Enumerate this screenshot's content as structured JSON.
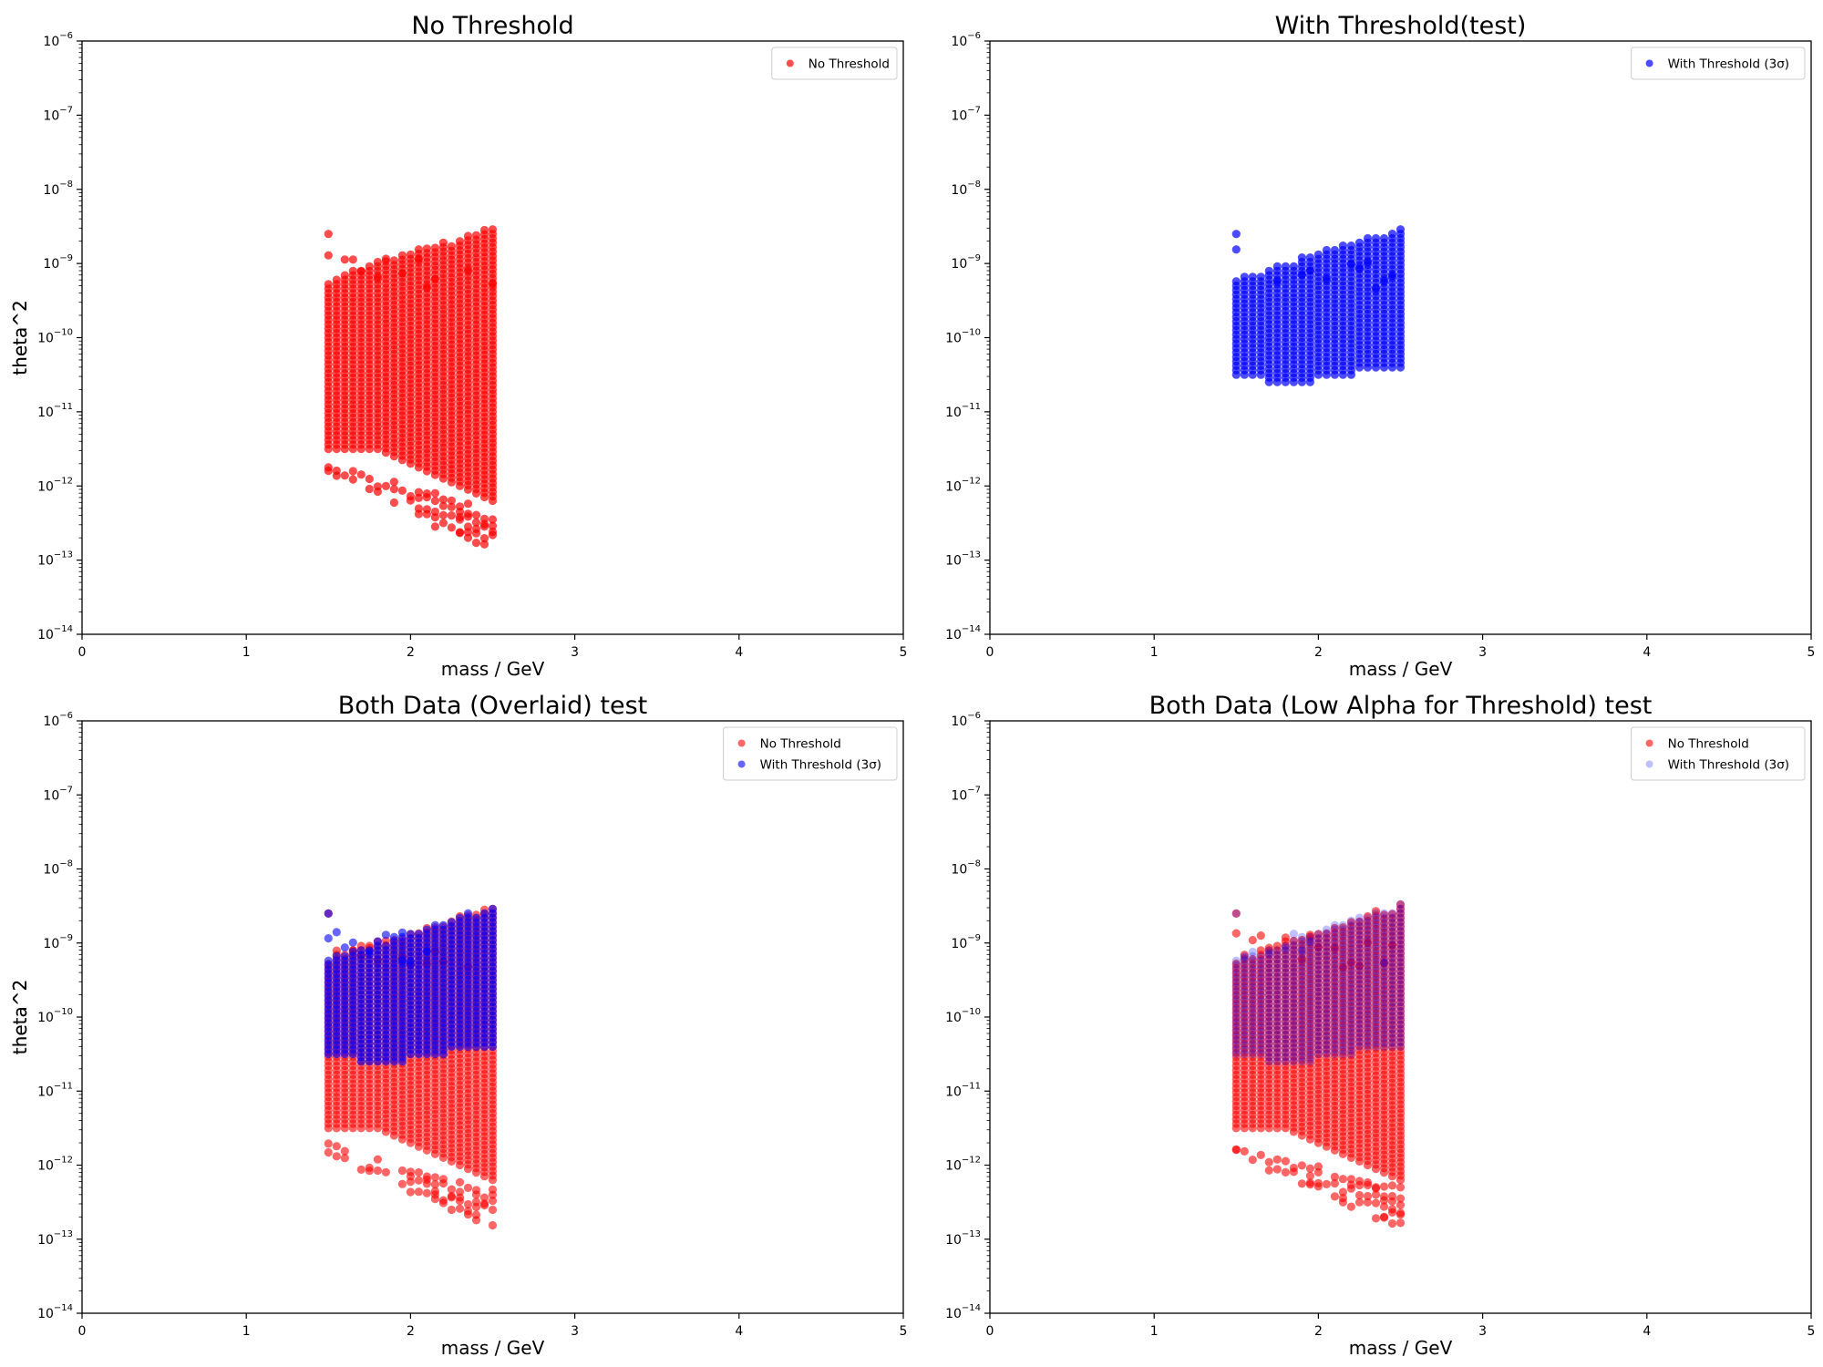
{
  "figure": {
    "marker_colors": {
      "red": "#ff0000",
      "blue": "#0000ff"
    }
  },
  "chart_data": [
    {
      "type": "scatter",
      "title": "No Threshold",
      "xlabel": "mass / GeV",
      "ylabel": "theta^2",
      "xlim": [
        0,
        5
      ],
      "ylim": [
        1e-14,
        1e-06
      ],
      "yscale": "log",
      "grid": false,
      "legend_placement": "top-right",
      "x_ticks": [
        "0",
        "1",
        "2",
        "3",
        "4",
        "5"
      ],
      "y_tick_exponents": [
        -14,
        -13,
        -12,
        -11,
        -10,
        -9,
        -8,
        -7,
        -6
      ],
      "series": [
        {
          "name": "No Threshold",
          "color": "#ff0000",
          "alpha": 0.7,
          "x_range": [
            1.5,
            2.5
          ],
          "x_step": 0.05,
          "y_range": [
            1.6e-13,
            2.5e-09
          ],
          "note_shape": "dense grid"
        }
      ]
    },
    {
      "type": "scatter",
      "title": "With Threshold(test)",
      "xlabel": "mass / GeV",
      "ylabel": "theta^2",
      "xlim": [
        0,
        5
      ],
      "ylim": [
        1e-14,
        1e-06
      ],
      "yscale": "log",
      "grid": false,
      "legend_placement": "top-right",
      "x_ticks": [
        "0",
        "1",
        "2",
        "3",
        "4",
        "5"
      ],
      "y_tick_exponents": [
        -14,
        -13,
        -12,
        -11,
        -10,
        -9,
        -8,
        -7,
        -6
      ],
      "series": [
        {
          "name": "With Threshold (3σ)",
          "color": "#0000ff",
          "alpha": 0.7,
          "x_range": [
            1.5,
            2.5
          ],
          "x_step": 0.05,
          "y_range": [
            2.5e-11,
            2.5e-09
          ]
        }
      ]
    },
    {
      "type": "scatter",
      "title": "Both Data (Overlaid) test",
      "xlabel": "mass / GeV",
      "ylabel": "theta^2",
      "xlim": [
        0,
        5
      ],
      "ylim": [
        1e-14,
        1e-06
      ],
      "yscale": "log",
      "grid": false,
      "legend_placement": "top-right",
      "x_ticks": [
        "0",
        "1",
        "2",
        "3",
        "4",
        "5"
      ],
      "y_tick_exponents": [
        -14,
        -13,
        -12,
        -11,
        -10,
        -9,
        -8,
        -7,
        -6
      ],
      "series": [
        {
          "name": "No Threshold",
          "color": "#ff0000",
          "alpha": 0.6,
          "x_range": [
            1.5,
            2.5
          ],
          "x_step": 0.05,
          "y_range": [
            1.6e-13,
            2.5e-09
          ]
        },
        {
          "name": "With Threshold (3σ)",
          "color": "#0000ff",
          "alpha": 0.6,
          "x_range": [
            1.5,
            2.5
          ],
          "x_step": 0.05,
          "y_range": [
            2.5e-11,
            2.5e-09
          ]
        }
      ]
    },
    {
      "type": "scatter",
      "title": "Both Data (Low Alpha for Threshold) test",
      "xlabel": "mass / GeV",
      "ylabel": "theta^2",
      "xlim": [
        0,
        5
      ],
      "ylim": [
        1e-14,
        1e-06
      ],
      "yscale": "log",
      "grid": false,
      "legend_placement": "top-right",
      "x_ticks": [
        "0",
        "1",
        "2",
        "3",
        "4",
        "5"
      ],
      "y_tick_exponents": [
        -14,
        -13,
        -12,
        -11,
        -10,
        -9,
        -8,
        -7,
        -6
      ],
      "series": [
        {
          "name": "No Threshold",
          "color": "#ff0000",
          "alpha": 0.6,
          "x_range": [
            1.5,
            2.5
          ],
          "x_step": 0.05,
          "y_range": [
            1.6e-13,
            2.5e-09
          ]
        },
        {
          "name": "With Threshold (3σ)",
          "color": "#0000ff",
          "alpha": 0.25,
          "x_range": [
            1.5,
            2.5
          ],
          "x_step": 0.05,
          "y_range": [
            2.5e-11,
            2.5e-09
          ]
        }
      ]
    }
  ]
}
